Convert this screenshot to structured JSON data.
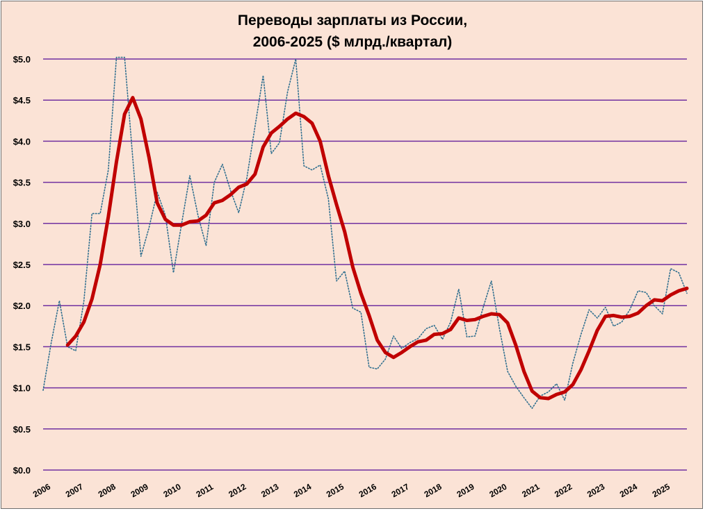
{
  "chart_data": {
    "type": "line",
    "title": "Переводы зарплаты из России,",
    "subtitle": "2006-2025 ($ млрд./квартал)",
    "xlabel": "",
    "ylabel": "",
    "ylim": [
      0,
      5
    ],
    "yticks": [
      "$0.0",
      "$0.5",
      "$1.0",
      "$1.5",
      "$2.0",
      "$2.5",
      "$3.0",
      "$3.5",
      "$4.0",
      "$4.5",
      "$5.0"
    ],
    "xticks": [
      "2006",
      "2007",
      "2008",
      "2009",
      "2010",
      "2011",
      "2012",
      "2013",
      "2014",
      "2015",
      "2016",
      "2017",
      "2018",
      "2019",
      "2020",
      "2021",
      "2022",
      "2023",
      "2024",
      "2025"
    ],
    "grid": true,
    "legend": "none",
    "x_start_year": 2006,
    "quarters_per_year": 4,
    "series": [
      {
        "style": "dotted",
        "color": "#2f6f8f",
        "values": [
          0.97,
          1.55,
          2.06,
          1.5,
          1.45,
          2.05,
          3.12,
          3.12,
          3.65,
          5.02,
          5.02,
          3.8,
          2.6,
          2.95,
          3.38,
          3.1,
          2.4,
          3.0,
          3.58,
          3.1,
          2.73,
          3.5,
          3.72,
          3.4,
          3.13,
          3.55,
          4.18,
          4.8,
          3.85,
          3.98,
          4.6,
          5.0,
          3.7,
          3.65,
          3.71,
          3.3,
          2.3,
          2.42,
          1.97,
          1.92,
          1.25,
          1.23,
          1.35,
          1.63,
          1.48,
          1.55,
          1.6,
          1.72,
          1.76,
          1.59,
          1.8,
          2.2,
          1.62,
          1.63,
          1.98,
          2.3,
          1.72,
          1.2,
          1.02,
          0.88,
          0.75,
          0.9,
          0.95,
          1.05,
          0.85,
          1.3,
          1.65,
          1.95,
          1.85,
          1.98,
          1.75,
          1.8,
          1.95,
          2.18,
          2.16,
          2.0,
          1.9,
          2.45,
          2.4,
          2.15
        ]
      },
      {
        "style": "solid",
        "color": "#c00000",
        "values": [
          null,
          null,
          null,
          1.52,
          1.63,
          1.8,
          2.08,
          2.5,
          3.08,
          3.75,
          4.33,
          4.53,
          4.27,
          3.8,
          3.25,
          3.05,
          2.98,
          2.98,
          3.02,
          3.03,
          3.1,
          3.25,
          3.28,
          3.35,
          3.44,
          3.48,
          3.6,
          3.93,
          4.1,
          4.18,
          4.27,
          4.34,
          4.3,
          4.22,
          4.0,
          3.58,
          3.23,
          2.9,
          2.47,
          2.15,
          1.88,
          1.58,
          1.43,
          1.37,
          1.43,
          1.5,
          1.56,
          1.58,
          1.65,
          1.66,
          1.71,
          1.85,
          1.82,
          1.83,
          1.87,
          1.9,
          1.89,
          1.79,
          1.52,
          1.2,
          0.96,
          0.88,
          0.87,
          0.92,
          0.95,
          1.04,
          1.22,
          1.45,
          1.7,
          1.87,
          1.88,
          1.86,
          1.87,
          1.91,
          2.0,
          2.07,
          2.06,
          2.13,
          2.18,
          2.21
        ]
      }
    ]
  }
}
